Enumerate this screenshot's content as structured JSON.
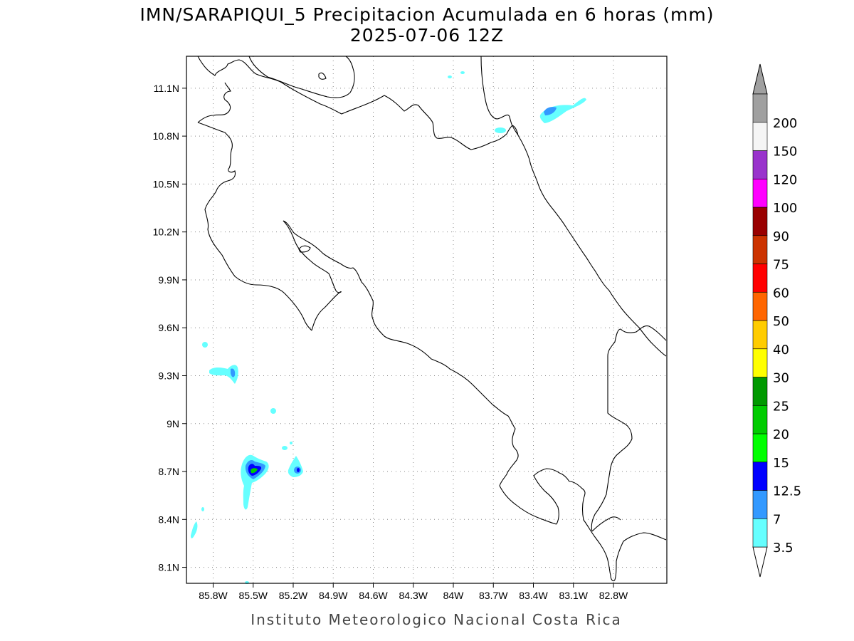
{
  "title_line1": "IMN/SARAPIQUI_5 Precipitacion Acumulada en 6 horas (mm)",
  "title_line2": "2025-07-06 12Z",
  "credit": "Instituto Meteorologico Nacional Costa Rica",
  "map": {
    "lon_range": [
      -86.0,
      -82.4
    ],
    "lat_range": [
      8.0,
      11.3
    ],
    "lon_ticks": [
      {
        "value": -85.8,
        "label": "85.8W"
      },
      {
        "value": -85.5,
        "label": "85.5W"
      },
      {
        "value": -85.2,
        "label": "85.2W"
      },
      {
        "value": -84.9,
        "label": "84.9W"
      },
      {
        "value": -84.6,
        "label": "84.6W"
      },
      {
        "value": -84.3,
        "label": "84.3W"
      },
      {
        "value": -84.0,
        "label": "84W"
      },
      {
        "value": -83.7,
        "label": "83.7W"
      },
      {
        "value": -83.4,
        "label": "83.4W"
      },
      {
        "value": -83.1,
        "label": "83.1W"
      },
      {
        "value": -82.8,
        "label": "82.8W"
      }
    ],
    "lat_ticks": [
      {
        "value": 11.1,
        "label": "11.1N"
      },
      {
        "value": 10.8,
        "label": "10.8N"
      },
      {
        "value": 10.5,
        "label": "10.5N"
      },
      {
        "value": 10.2,
        "label": "10.2N"
      },
      {
        "value": 9.9,
        "label": "9.9N"
      },
      {
        "value": 9.6,
        "label": "9.6N"
      },
      {
        "value": 9.3,
        "label": "9.3N"
      },
      {
        "value": 9.0,
        "label": "9N"
      },
      {
        "value": 8.7,
        "label": "8.7N"
      },
      {
        "value": 8.4,
        "label": "8.4N"
      },
      {
        "value": 8.1,
        "label": "8.1N"
      }
    ],
    "grid": true
  },
  "colorbar": {
    "levels": [
      {
        "label": "3.5",
        "color": "#66ffff"
      },
      {
        "label": "7",
        "color": "#3399ff"
      },
      {
        "label": "12.5",
        "color": "#0000ff"
      },
      {
        "label": "15",
        "color": "#00ff00"
      },
      {
        "label": "20",
        "color": "#00cc00"
      },
      {
        "label": "25",
        "color": "#009900"
      },
      {
        "label": "30",
        "color": "#ffff00"
      },
      {
        "label": "40",
        "color": "#ffcc00"
      },
      {
        "label": "50",
        "color": "#ff6600"
      },
      {
        "label": "60",
        "color": "#ff0000"
      },
      {
        "label": "75",
        "color": "#cc3300"
      },
      {
        "label": "90",
        "color": "#990000"
      },
      {
        "label": "100",
        "color": "#ff00ff"
      },
      {
        "label": "120",
        "color": "#9933cc"
      },
      {
        "label": "150",
        "color": "#f5f5f5"
      },
      {
        "label": "200",
        "color": "#a0a0a0"
      }
    ],
    "top_arrow_color": "#a0a0a0",
    "bottom_arrow_color": "#ffffff"
  },
  "colors": {
    "light_cyan": "#66ffff",
    "mid_blue": "#3399ff",
    "deep_blue": "#0000ff",
    "green": "#00cc00"
  }
}
